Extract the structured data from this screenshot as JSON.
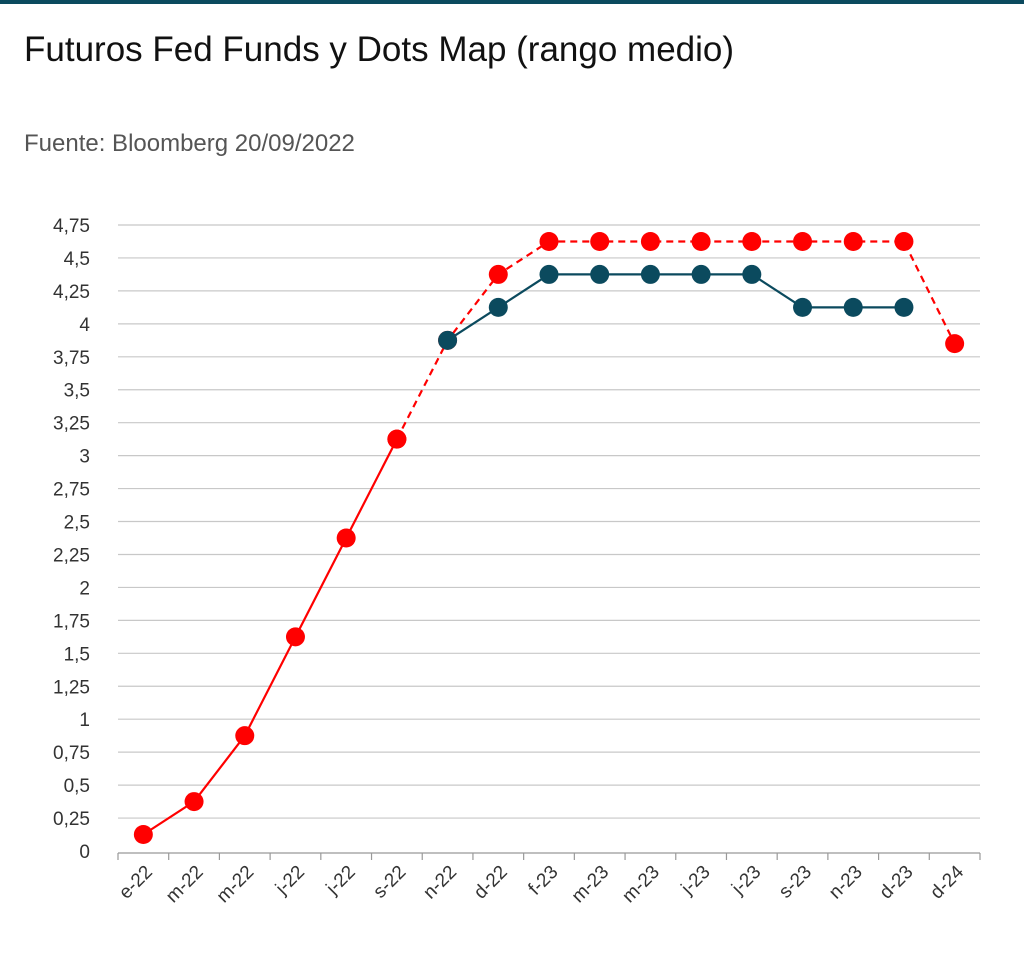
{
  "title": "Futuros Fed Funds y Dots Map (rango medio)",
  "source": "Fuente: Bloomberg 20/09/2022",
  "colors": {
    "red": "#ff0000",
    "teal": "#0b4a5e",
    "grid": "#c8c8c8",
    "axis": "#999999"
  },
  "chart_data": {
    "type": "line",
    "title": "Futuros Fed Funds y Dots Map (rango medio)",
    "subtitle": "Fuente: Bloomberg 20/09/2022",
    "categories": [
      "e-22",
      "m-22",
      "m-22",
      "j-22",
      "j-22",
      "s-22",
      "n-22",
      "d-22",
      "f-23",
      "m-23",
      "m-23",
      "j-23",
      "j-23",
      "s-23",
      "n-23",
      "d-23",
      "d-24"
    ],
    "ylim": [
      0,
      4.75
    ],
    "yticks": [
      "0",
      "0,25",
      "0,5",
      "0,75",
      "1",
      "1,25",
      "1,5",
      "1,75",
      "2",
      "2,25",
      "2,5",
      "2,75",
      "3",
      "3,25",
      "3,5",
      "3,75",
      "4",
      "4,25",
      "4,5",
      "4,75"
    ],
    "grid": true,
    "series": [
      {
        "color": "#ff0000",
        "style": "solid",
        "values": [
          0.125,
          0.375,
          0.875,
          1.625,
          2.375,
          3.125,
          null,
          null,
          null,
          null,
          null,
          null,
          null,
          null,
          null,
          null,
          null
        ]
      },
      {
        "color": "#ff0000",
        "style": "dashed",
        "values": [
          null,
          null,
          null,
          null,
          null,
          3.125,
          3.875,
          4.375,
          4.625,
          4.625,
          4.625,
          4.625,
          4.625,
          4.625,
          4.625,
          4.625,
          3.85
        ]
      },
      {
        "color": "#0b4a5e",
        "style": "solid",
        "values": [
          null,
          null,
          null,
          null,
          null,
          null,
          3.875,
          4.125,
          4.375,
          4.375,
          4.375,
          4.375,
          4.375,
          4.125,
          4.125,
          4.125,
          null
        ]
      }
    ]
  }
}
